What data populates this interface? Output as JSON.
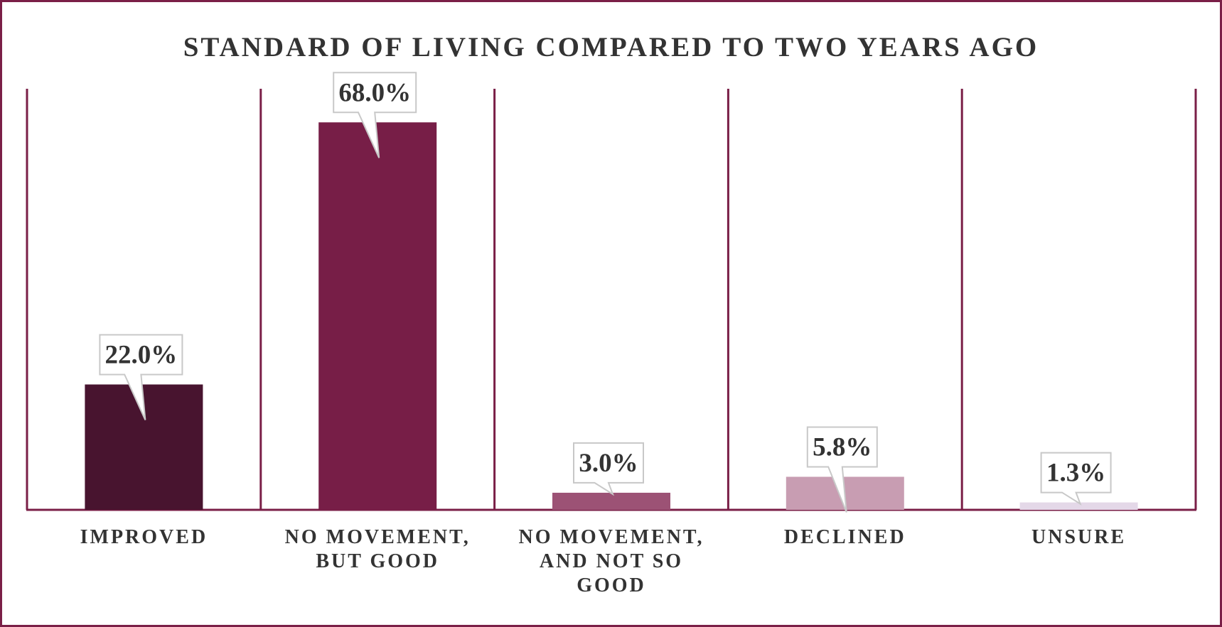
{
  "chart_data": {
    "type": "bar",
    "title": "STANDARD OF LIVING COMPARED TO TWO YEARS AGO",
    "categories": [
      [
        "IMPROVED"
      ],
      [
        "NO MOVEMENT,",
        "BUT GOOD"
      ],
      [
        "NO MOVEMENT,",
        "AND NOT SO",
        "GOOD"
      ],
      [
        "DECLINED"
      ],
      [
        "UNSURE"
      ]
    ],
    "values": [
      22.0,
      68.0,
      3.0,
      5.8,
      1.3
    ],
    "labels": [
      "22.0%",
      "68.0%",
      "3.0%",
      "5.8%",
      "1.3%"
    ],
    "colors": [
      "#48142f",
      "#771e47",
      "#9c5275",
      "#c89db2",
      "#e4d8e8"
    ],
    "ylim": [
      0,
      80
    ],
    "grid": false,
    "legend": "none"
  },
  "colors": {
    "frame": "#7a1f47",
    "callout_border": "#c8c8c8",
    "text": "#333333"
  }
}
